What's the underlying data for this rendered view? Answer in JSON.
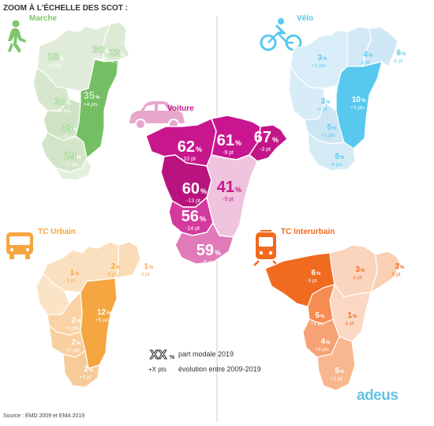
{
  "title": "ZOOM À L'ÉCHELLE DES SCOT :",
  "source": "Source : EMD 2009 et EMA 2019",
  "legend": {
    "symbol": "XX",
    "symbol_unit": "%",
    "share_label": "part modale 2019",
    "evo_symbol": "+X pts",
    "evo_label": "évolution entre 2009-2019"
  },
  "logo": "adeus",
  "colors": {
    "marche": "#7cc66c",
    "velo": "#58c8ee",
    "voiture": "#c8168d",
    "tc_urbain": "#f5a641",
    "tc_interurbain": "#f06a20"
  },
  "panels": {
    "marche": {
      "name": "Marche",
      "icon": "walking-person-icon",
      "regions": [
        {
          "value": "28",
          "unit": "%",
          "change": "+9 pts"
        },
        {
          "value": "30",
          "unit": "%",
          "change": "+10 pts"
        },
        {
          "value": "23",
          "unit": "%",
          "change": "+4 pts"
        },
        {
          "value": "35",
          "unit": "%",
          "change": "+4 pts"
        },
        {
          "value": "30",
          "unit": "%",
          "change": "+12 pts"
        },
        {
          "value": "33",
          "unit": "%",
          "change": "+10 pts"
        },
        {
          "value": "29",
          "unit": "%",
          "change": "+7 pts"
        }
      ]
    },
    "velo": {
      "name": "Vélo",
      "icon": "cyclist-icon",
      "regions": [
        {
          "value": "3",
          "unit": "%",
          "change": "+2 pts"
        },
        {
          "value": "4",
          "unit": "%",
          "change": "-1 pt"
        },
        {
          "value": "6",
          "unit": "%",
          "change": "-1 pt"
        },
        {
          "value": "3",
          "unit": "%",
          "change": "-1 pt"
        },
        {
          "value": "10",
          "unit": "%",
          "change": "+3 pts"
        },
        {
          "value": "5",
          "unit": "%",
          "change": "+1 pts"
        },
        {
          "value": "5",
          "unit": "%",
          "change": "-4 pts"
        }
      ]
    },
    "voiture": {
      "name": "Voiture",
      "icon": "car-icon",
      "regions": [
        {
          "value": "62",
          "unit": "%",
          "change": "-10 pt"
        },
        {
          "value": "61",
          "unit": "%",
          "change": "-9 pt"
        },
        {
          "value": "67",
          "unit": "%",
          "change": "-3 pt"
        },
        {
          "value": "60",
          "unit": "%",
          "change": "-13 pt"
        },
        {
          "value": "41",
          "unit": "%",
          "change": "-9 pt"
        },
        {
          "value": "56",
          "unit": "%",
          "change": "-14 pt"
        },
        {
          "value": "59",
          "unit": "%",
          "change": "-5 pt"
        }
      ]
    },
    "tc_urbain": {
      "name": "TC Urbain",
      "icon": "bus-icon",
      "regions": [
        {
          "value": "2",
          "unit": "%",
          "change": "0 pt"
        },
        {
          "value": "1",
          "unit": "%",
          "change": "0 pt"
        },
        {
          "value": "1",
          "unit": "%",
          "change": "0 pt"
        },
        {
          "value": "12",
          "unit": "%",
          "change": "+5 pts"
        },
        {
          "value": "2",
          "unit": "%",
          "change": "+1 pts"
        },
        {
          "value": "2",
          "unit": "%",
          "change": "+1 pts"
        },
        {
          "value": "2",
          "unit": "%",
          "change": "+1 pt"
        }
      ]
    },
    "tc_interurbain": {
      "name": "TC Interurbain",
      "icon": "tram-icon",
      "regions": [
        {
          "value": "3",
          "unit": "%",
          "change": "-1 pt"
        },
        {
          "value": "3",
          "unit": "%",
          "change": "0 pt"
        },
        {
          "value": "6",
          "unit": "%",
          "change": "0 pt"
        },
        {
          "value": "1",
          "unit": "%",
          "change": "-1 pt"
        },
        {
          "value": "5",
          "unit": "%",
          "change": "+1 pt"
        },
        {
          "value": "4",
          "unit": "%",
          "change": "+2 pts"
        },
        {
          "value": "5",
          "unit": "%",
          "change": "+1 pt"
        }
      ]
    }
  }
}
